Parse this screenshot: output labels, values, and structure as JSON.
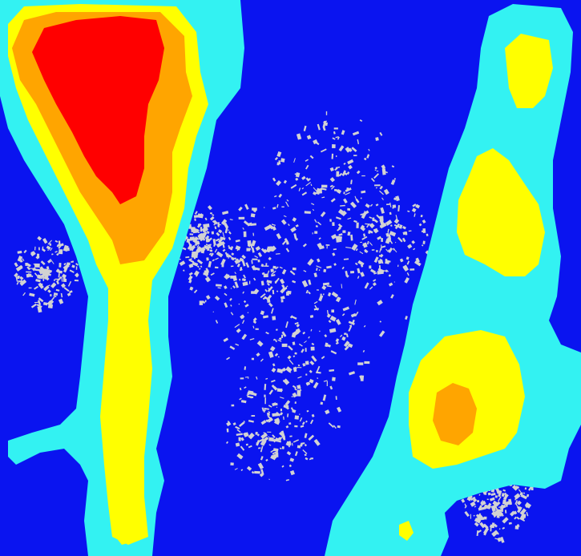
{
  "map": {
    "colors": {
      "background": "#0a14f0",
      "urban": "#d2d2d2",
      "level1": "#33f2f2",
      "level2": "#ffff00",
      "level3": "#ffa500",
      "level4": "#ff0000"
    }
  }
}
